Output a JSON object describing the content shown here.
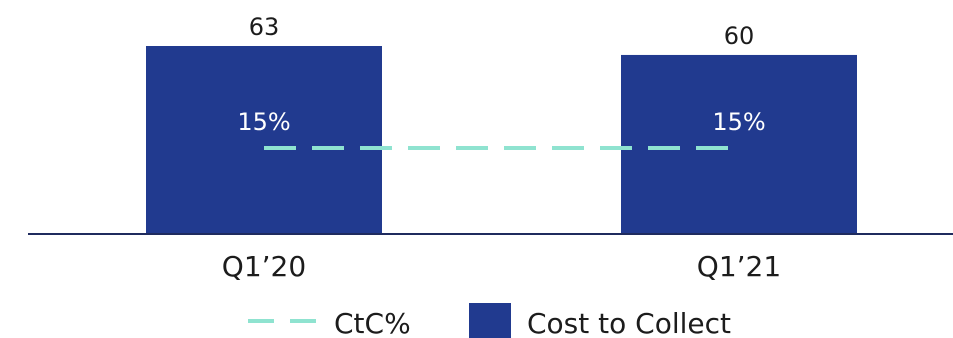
{
  "chart_data": {
    "type": "bar",
    "categories": [
      "Q1’20",
      "Q1’21"
    ],
    "series": [
      {
        "name": "Cost to Collect",
        "type": "bar",
        "values": [
          63,
          60
        ],
        "value_labels": [
          "63",
          "60"
        ],
        "color": "#213a8f"
      },
      {
        "name": "CtC%",
        "type": "line",
        "style": "dashed",
        "values": [
          15,
          15
        ],
        "value_labels": [
          "15%",
          "15%"
        ],
        "color": "#8fe3d0"
      }
    ],
    "title": "",
    "xlabel": "",
    "ylabel": "",
    "grid": false,
    "legend": {
      "placement": "bottom-center",
      "items": [
        {
          "name": "CtC%",
          "marker": "dashed-line",
          "color": "#8fe3d0"
        },
        {
          "name": "Cost to Collect",
          "marker": "square",
          "color": "#213a8f"
        }
      ]
    }
  }
}
